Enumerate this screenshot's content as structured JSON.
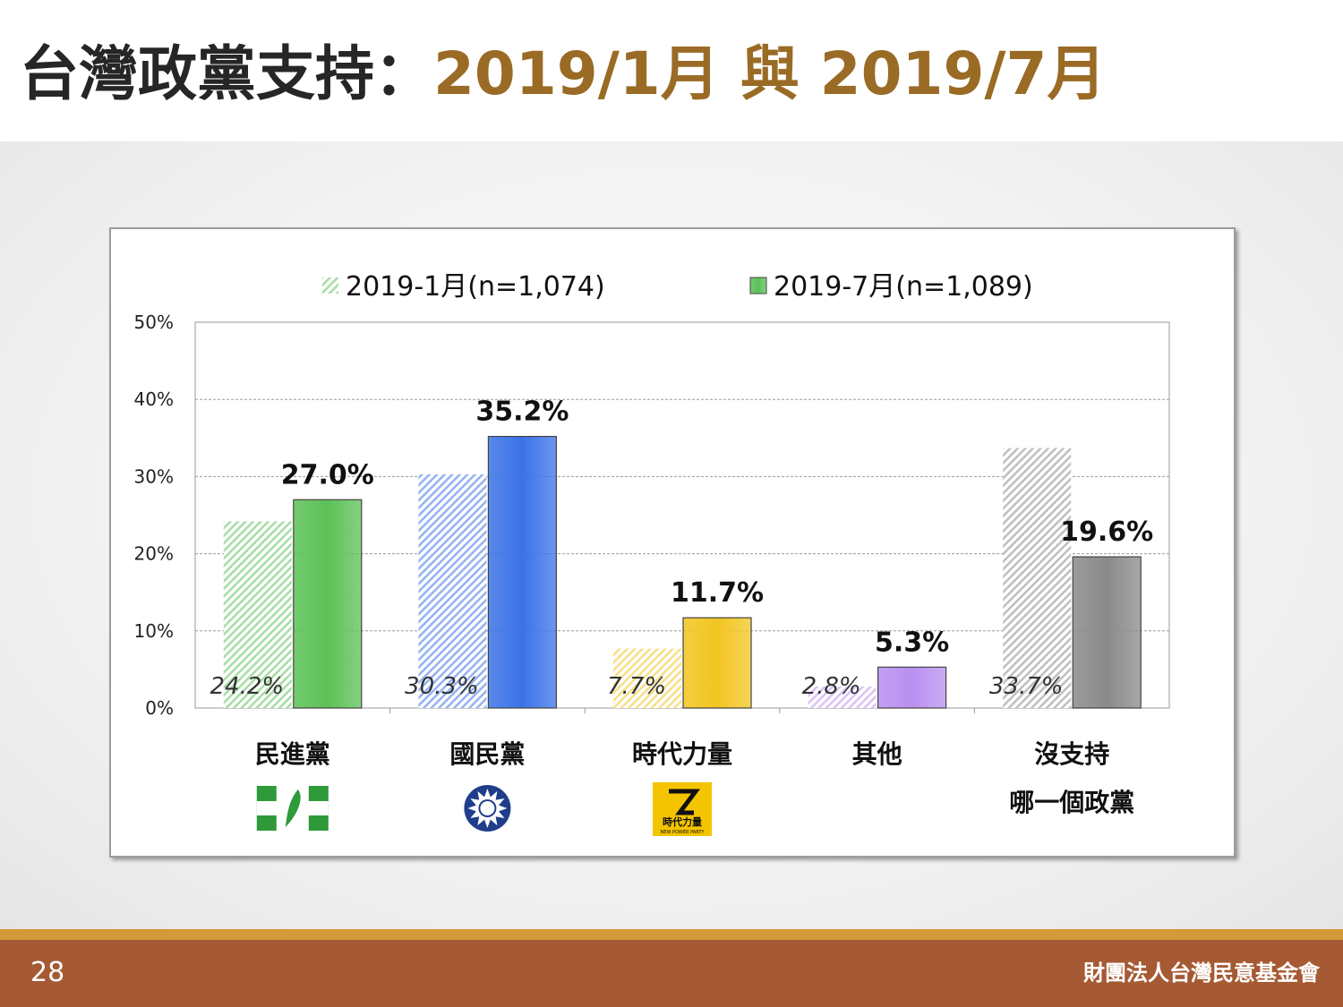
{
  "title": {
    "main": "台灣政黨支持：",
    "accent": "2019/1月 與 2019/7月"
  },
  "footer": {
    "page_number": "28",
    "org": "財團法人台灣民意基金會"
  },
  "colors": {
    "title_accent": "#9a6b25",
    "footer_bar": "#a55a33",
    "footer_line": "#d39a3a"
  },
  "chart_data": {
    "type": "bar",
    "categories": [
      "民進黨",
      "國民黨",
      "時代力量",
      "其他",
      "沒支持"
    ],
    "category_sublabels": [
      "",
      "",
      "",
      "",
      "哪一個政黨"
    ],
    "category_logos": [
      "dpp-logo-icon",
      "kmt-logo-icon",
      "npp-logo-icon",
      "",
      ""
    ],
    "logo_text": {
      "npp": "時代力量",
      "npp_en": "NEW POWER PARTY"
    },
    "series": [
      {
        "name": "2019-1月(n=1,074)",
        "values": [
          24.2,
          30.3,
          7.7,
          2.8,
          33.7
        ],
        "style": "hatched"
      },
      {
        "name": "2019-7月(n=1,089)",
        "values": [
          27.0,
          35.2,
          11.7,
          5.3,
          19.6
        ],
        "style": "solid"
      }
    ],
    "data_labels": {
      "prev": [
        "24.2%",
        "30.3%",
        "7.7%",
        "2.8%",
        "33.7%"
      ],
      "cur": [
        "27.0%",
        "35.2%",
        "11.7%",
        "5.3%",
        "19.6%"
      ]
    },
    "bar_colors": [
      "#5cc157",
      "#3b73e8",
      "#f2c520",
      "#b98ff0",
      "#8a8a8a"
    ],
    "yticks": [
      "0%",
      "10%",
      "20%",
      "30%",
      "40%",
      "50%"
    ],
    "ylim": [
      0,
      50
    ],
    "grid": true,
    "legend_position": "top"
  }
}
